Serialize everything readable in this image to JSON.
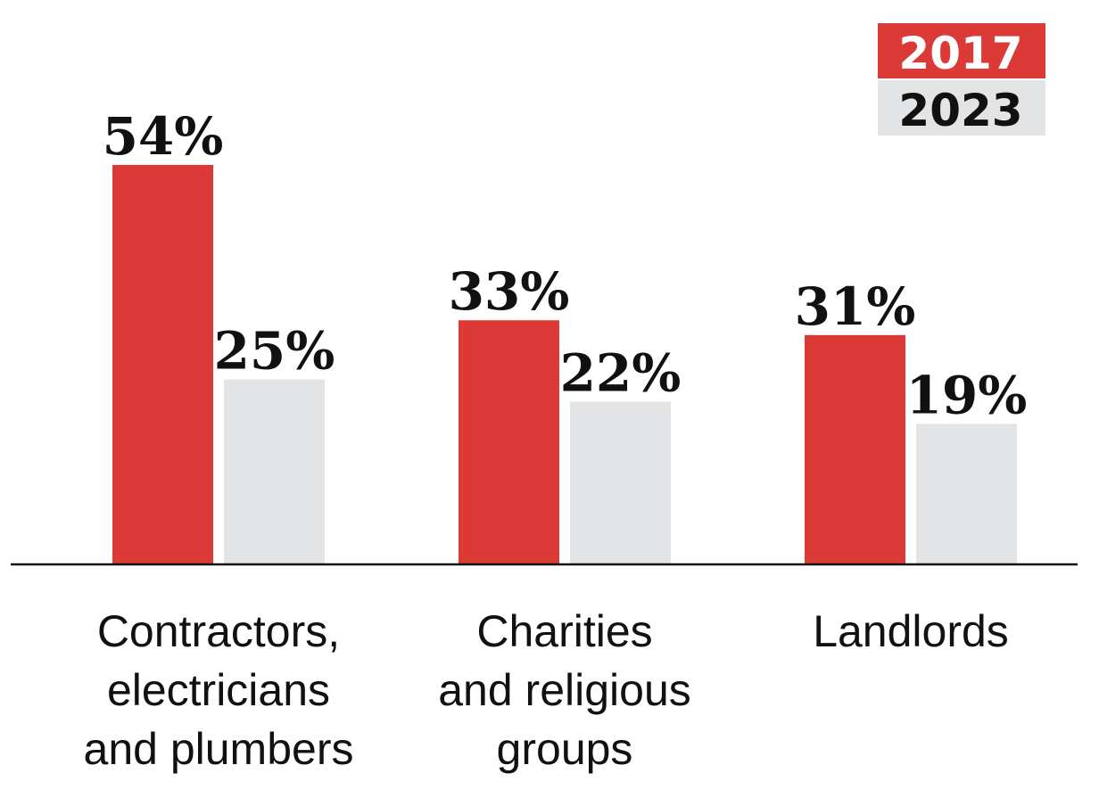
{
  "colors": {
    "series_2017": "#dc3a36",
    "series_2023": "#e3e4e5",
    "axis": "#111111",
    "legend_text_2017": "#ffffff",
    "legend_text_2023": "#111111"
  },
  "legend": {
    "placement": "top-right",
    "items": [
      "2017",
      "2023"
    ]
  },
  "chart_data": {
    "type": "bar",
    "categories": [
      [
        "Contractors,",
        "electricians",
        "and plumbers"
      ],
      [
        "Charities",
        "and religious",
        "groups"
      ],
      [
        "Landlords"
      ]
    ],
    "series": [
      {
        "name": "2017",
        "values": [
          54,
          33,
          31
        ],
        "labels": [
          "54%",
          "33%",
          "31%"
        ]
      },
      {
        "name": "2023",
        "values": [
          25,
          22,
          19
        ],
        "labels": [
          "25%",
          "22%",
          "19%"
        ]
      }
    ],
    "ylim": [
      0,
      54
    ],
    "unit": "%",
    "grid": false,
    "title": "",
    "xlabel": "",
    "ylabel": ""
  }
}
